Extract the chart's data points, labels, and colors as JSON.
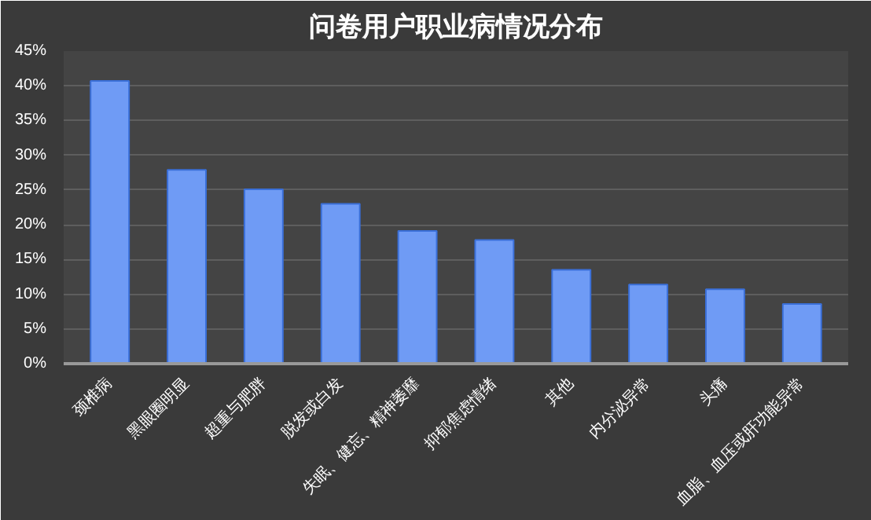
{
  "chart_data": {
    "type": "bar",
    "title": "问卷用户职业病情况分布",
    "categories": [
      "颈椎病",
      "黑眼圈明显",
      "超重与肥胖",
      "脱发或白发",
      "失眠、健忘、精神萎靡",
      "抑郁焦虑情绪",
      "其他",
      "内分泌异常",
      "头痛",
      "血脂、血压或肝功能异常"
    ],
    "values": [
      40.7,
      27.9,
      25.1,
      23.0,
      19.1,
      17.8,
      13.5,
      11.4,
      10.7,
      8.6
    ],
    "color": "#6f9bf5",
    "ylim": [
      0,
      45
    ],
    "yticks": [
      {
        "value": 0,
        "label": "0%"
      },
      {
        "value": 5,
        "label": "5%"
      },
      {
        "value": 10,
        "label": "10%"
      },
      {
        "value": 15,
        "label": "15%"
      },
      {
        "value": 20,
        "label": "20%"
      },
      {
        "value": 25,
        "label": "25%"
      },
      {
        "value": 30,
        "label": "30%"
      },
      {
        "value": 35,
        "label": "35%"
      },
      {
        "value": 40,
        "label": "40%"
      },
      {
        "value": 45,
        "label": "45%"
      }
    ],
    "grid": "y"
  }
}
